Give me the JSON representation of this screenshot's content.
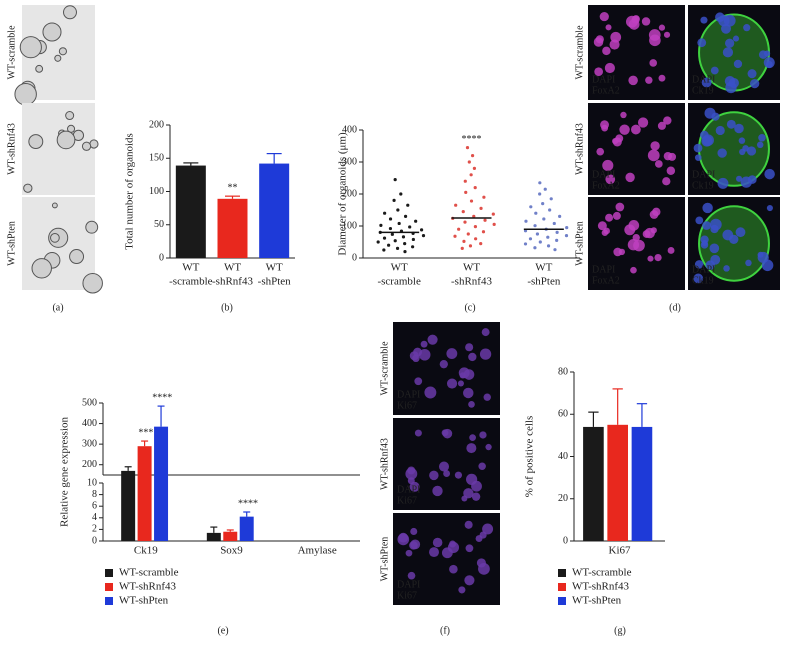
{
  "chart_data": [
    {
      "type": "bar",
      "label": "(b)",
      "ylabel": "Total number of organoids",
      "categories": [
        [
          "WT",
          "-scramble"
        ],
        [
          "WT",
          "-shRnf43"
        ],
        [
          "WT",
          "-shPten"
        ]
      ],
      "values": [
        139,
        89,
        142
      ],
      "errors": [
        4,
        4,
        15
      ],
      "colors": [
        "#1a1a1a",
        "#e8281e",
        "#1e3ad8"
      ],
      "ylim": [
        0,
        200
      ],
      "yticks": [
        0,
        50,
        100,
        150,
        200
      ],
      "annotations": [
        {
          "text": "**",
          "index": 1
        }
      ]
    },
    {
      "type": "dot",
      "label": "(c)",
      "ylabel": "Diameter of organoids (μm)",
      "categories": [
        [
          "WT",
          "-scramble"
        ],
        [
          "WT",
          "-shRnf43"
        ],
        [
          "WT",
          "-shPten"
        ]
      ],
      "colors": [
        "#1a1a1a",
        "#e0504a",
        "#7080c8"
      ],
      "values": [
        [
          245,
          200,
          180,
          165,
          150,
          140,
          130,
          122,
          115,
          108,
          102,
          97,
          92,
          88,
          84,
          80,
          77,
          74,
          70,
          66,
          62,
          58,
          54,
          50,
          45,
          40,
          35,
          30,
          25,
          20
        ],
        [
          345,
          320,
          300,
          280,
          260,
          240,
          220,
          205,
          190,
          178,
          165,
          155,
          145,
          137,
          130,
          124,
          118,
          112,
          105,
          98,
          90,
          82,
          75,
          68,
          60,
          52,
          45,
          38,
          30
        ],
        [
          235,
          215,
          200,
          185,
          170,
          160,
          150,
          140,
          130,
          122,
          115,
          108,
          101,
          95,
          90,
          85,
          80,
          75,
          70,
          65,
          60,
          55,
          50,
          44,
          38,
          32,
          26
        ]
      ],
      "medians": [
        80,
        125,
        90
      ],
      "ylim": [
        0,
        400
      ],
      "yticks": [
        0,
        100,
        200,
        300,
        400
      ],
      "annotations": [
        {
          "text": "****",
          "index": 1
        }
      ]
    },
    {
      "type": "bar",
      "label": "(e)",
      "ylabel": "Relative gene expression",
      "categories": [
        [
          "Ck19"
        ],
        [
          "Sox9"
        ],
        [
          "Amylase"
        ]
      ],
      "series": [
        {
          "name": "WT-scramble",
          "color": "#1a1a1a",
          "values": [
            170,
            1.4,
            0
          ],
          "errors": [
            20,
            1,
            0
          ]
        },
        {
          "name": "WT-shRnf43",
          "color": "#e8281e",
          "values": [
            290,
            1.6,
            0
          ],
          "errors": [
            25,
            0.3,
            0
          ]
        },
        {
          "name": "WT-shPten",
          "color": "#1e3ad8",
          "values": [
            385,
            4.2,
            0
          ],
          "errors": [
            100,
            0.8,
            0
          ]
        }
      ],
      "ylim": [
        0,
        500
      ],
      "ybreak": [
        10,
        150
      ],
      "yticks": [
        0,
        2,
        4,
        6,
        8,
        10,
        200,
        300,
        400,
        500
      ],
      "annotations": [
        {
          "text": "***",
          "index": 0,
          "series": 1
        },
        {
          "text": "****",
          "index": 0,
          "series": 2
        },
        {
          "text": "****",
          "index": 1,
          "series": 2
        }
      ]
    },
    {
      "type": "bar",
      "label": "(g)",
      "ylabel": "% of positive cells",
      "categories": [
        [
          "Ki67"
        ]
      ],
      "series": [
        {
          "name": "WT-scramble",
          "color": "#1a1a1a",
          "values": [
            54
          ],
          "errors": [
            7
          ]
        },
        {
          "name": "WT-shRnf43",
          "color": "#e8281e",
          "values": [
            55
          ],
          "errors": [
            17
          ]
        },
        {
          "name": "WT-shPten",
          "color": "#1e3ad8",
          "values": [
            54
          ],
          "errors": [
            11
          ]
        }
      ],
      "ylim": [
        0,
        80
      ],
      "yticks": [
        0,
        20,
        40,
        60,
        80
      ],
      "annotations": []
    }
  ],
  "panel_a": {
    "label": "(a)",
    "row_labels": [
      "WT-scramble",
      "WT-shRnf43",
      "WT-shPten"
    ]
  },
  "panel_d": {
    "label": "(d)",
    "row_labels": [
      "WT-scramble",
      "WT-shRnf43",
      "WT-shPten"
    ],
    "cells": [
      [
        [
          "DAPI",
          "FoxA2"
        ],
        [
          "DAPI",
          "Ck19"
        ]
      ],
      [
        [
          "DAPI",
          "FoxA2"
        ],
        [
          "DAPI",
          "Ck19"
        ]
      ],
      [
        [
          "DAPI",
          "FoxA2"
        ],
        [
          "DAPI",
          "Ck19"
        ]
      ]
    ]
  },
  "panel_f": {
    "label": "(f)",
    "row_labels": [
      "WT-scramble",
      "WT-shRnf43",
      "WT-shPten"
    ],
    "cells": [
      [
        "DAPI",
        "Ki67"
      ],
      [
        "DAPI",
        "Ki67"
      ],
      [
        "DAPI",
        "Ki67"
      ]
    ]
  }
}
